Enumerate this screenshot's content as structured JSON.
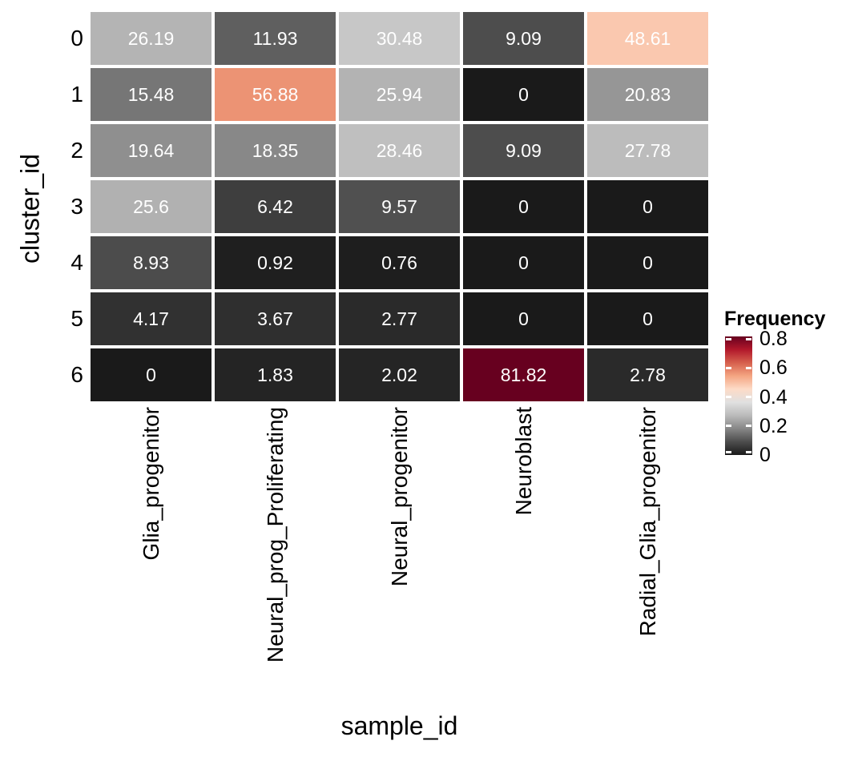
{
  "chart_data": {
    "type": "heatmap",
    "xlabel": "sample_id",
    "ylabel": "cluster_id",
    "categories_x": [
      "Glia_progenitor",
      "Neural_prog_Proliferating",
      "Neural_progenitor",
      "Neuroblast",
      "Radial_Glia_progenitor"
    ],
    "categories_y": [
      "0",
      "1",
      "2",
      "3",
      "4",
      "5",
      "6"
    ],
    "values_percent": [
      [
        26.19,
        11.93,
        30.48,
        9.09,
        48.61
      ],
      [
        15.48,
        56.88,
        25.94,
        0,
        20.83
      ],
      [
        19.64,
        18.35,
        28.46,
        9.09,
        27.78
      ],
      [
        25.6,
        6.42,
        9.57,
        0,
        0
      ],
      [
        8.93,
        0.92,
        0.76,
        0,
        0
      ],
      [
        4.17,
        3.67,
        2.77,
        0,
        0
      ],
      [
        0,
        1.83,
        2.02,
        81.82,
        2.78
      ]
    ],
    "legend": {
      "title": "Frequency",
      "ticks": [
        0.8,
        0.6,
        0.4,
        0.2,
        0
      ],
      "domain": [
        0,
        0.8182
      ]
    },
    "palette_low_to_high": [
      "#1a1a1a",
      "#4d4d4d",
      "#878787",
      "#bababa",
      "#e0e0e0",
      "#fddbc7",
      "#f4a582",
      "#d6604d",
      "#b2182b",
      "#67001f"
    ],
    "cell_text_color": "#ffffff",
    "grid_gap_color": "#ffffff",
    "layout_hints": {
      "legend_position": "right",
      "x_labels_rotated": true,
      "values_shown_in_cells": true
    }
  }
}
